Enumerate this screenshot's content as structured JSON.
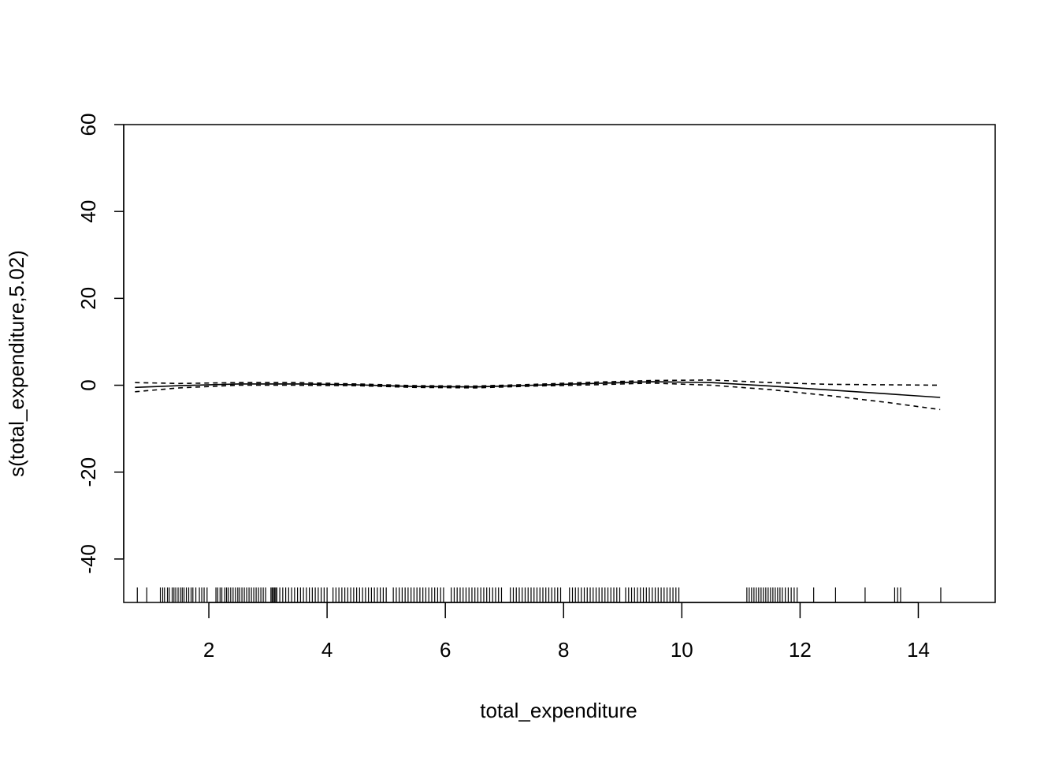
{
  "chart_data": {
    "type": "line",
    "xlabel": "total_expenditure",
    "ylabel": "s(total_expenditure,5.02)",
    "xlim": [
      0.56,
      15.3
    ],
    "ylim": [
      -50,
      60
    ],
    "x_ticks": [
      2,
      4,
      6,
      8,
      10,
      12,
      14
    ],
    "y_ticks": [
      -40,
      -20,
      0,
      20,
      40,
      60
    ],
    "series": [
      {
        "role": "smooth",
        "style": "solid",
        "x": [
          0.75,
          1.5,
          2.5,
          3.5,
          4.5,
          5.5,
          6.5,
          7.5,
          8.5,
          9.5,
          10.5,
          11.5,
          12.5,
          13.5,
          14.37
        ],
        "y": [
          -0.5,
          -0.1,
          0.3,
          0.3,
          0.1,
          -0.3,
          -0.4,
          0.0,
          0.4,
          0.8,
          0.6,
          -0.2,
          -1.1,
          -2.0,
          -2.8
        ]
      },
      {
        "role": "upper",
        "style": "dashed",
        "x": [
          0.75,
          1.5,
          2.5,
          3.5,
          4.5,
          5.5,
          6.5,
          7.5,
          8.5,
          9.5,
          10.5,
          11.5,
          12.5,
          13.5,
          14.37
        ],
        "y": [
          0.6,
          0.4,
          0.6,
          0.6,
          0.3,
          -0.1,
          -0.2,
          0.2,
          0.7,
          1.1,
          1.2,
          0.6,
          0.2,
          0.1,
          0.0
        ]
      },
      {
        "role": "lower",
        "style": "dashed",
        "x": [
          0.75,
          1.5,
          2.5,
          3.5,
          4.5,
          5.5,
          6.5,
          7.5,
          8.5,
          9.5,
          10.5,
          11.5,
          12.5,
          13.5,
          14.37
        ],
        "y": [
          -1.5,
          -0.6,
          0.0,
          0.0,
          -0.1,
          -0.5,
          -0.6,
          -0.2,
          0.1,
          0.5,
          0.0,
          -1.0,
          -2.4,
          -4.0,
          -5.6
        ]
      }
    ],
    "rug": [
      0.79,
      0.95,
      1.18,
      1.22,
      1.25,
      1.3,
      1.33,
      1.38,
      1.41,
      1.44,
      1.48,
      1.52,
      1.55,
      1.58,
      1.62,
      1.66,
      1.7,
      1.73,
      1.78,
      1.84,
      1.88,
      1.92,
      1.97,
      2.12,
      2.15,
      2.19,
      2.22,
      2.27,
      2.3,
      2.33,
      2.37,
      2.41,
      2.45,
      2.49,
      2.52,
      2.56,
      2.6,
      2.64,
      2.68,
      2.72,
      2.76,
      2.8,
      2.84,
      2.88,
      2.92,
      2.96,
      3.05,
      3.07,
      3.09,
      3.11,
      3.13,
      3.15,
      3.2,
      3.25,
      3.3,
      3.35,
      3.4,
      3.45,
      3.5,
      3.55,
      3.6,
      3.65,
      3.7,
      3.75,
      3.8,
      3.85,
      3.9,
      3.95,
      4.0,
      4.1,
      4.15,
      4.2,
      4.25,
      4.3,
      4.35,
      4.4,
      4.45,
      4.5,
      4.55,
      4.6,
      4.65,
      4.7,
      4.75,
      4.8,
      4.85,
      4.9,
      4.95,
      5.0,
      5.12,
      5.17,
      5.22,
      5.27,
      5.32,
      5.37,
      5.42,
      5.47,
      5.52,
      5.57,
      5.62,
      5.67,
      5.72,
      5.77,
      5.82,
      5.87,
      5.92,
      5.97,
      6.1,
      6.15,
      6.2,
      6.25,
      6.3,
      6.35,
      6.4,
      6.45,
      6.5,
      6.55,
      6.6,
      6.65,
      6.7,
      6.75,
      6.8,
      6.85,
      6.9,
      6.95,
      7.1,
      7.15,
      7.2,
      7.25,
      7.3,
      7.35,
      7.4,
      7.45,
      7.5,
      7.55,
      7.6,
      7.65,
      7.7,
      7.75,
      7.8,
      7.85,
      7.9,
      7.95,
      8.1,
      8.15,
      8.2,
      8.25,
      8.3,
      8.35,
      8.4,
      8.45,
      8.5,
      8.55,
      8.6,
      8.65,
      8.7,
      8.75,
      8.8,
      8.85,
      8.9,
      8.95,
      9.05,
      9.1,
      9.15,
      9.2,
      9.25,
      9.3,
      9.35,
      9.4,
      9.45,
      9.5,
      9.55,
      9.6,
      9.65,
      9.7,
      9.75,
      9.8,
      9.85,
      9.9,
      9.95,
      11.1,
      11.14,
      11.18,
      11.22,
      11.26,
      11.3,
      11.34,
      11.38,
      11.42,
      11.46,
      11.5,
      11.54,
      11.58,
      11.62,
      11.66,
      11.7,
      11.75,
      11.8,
      11.85,
      11.9,
      11.95,
      12.23,
      12.6,
      13.1,
      13.6,
      13.65,
      13.7,
      14.38
    ]
  }
}
